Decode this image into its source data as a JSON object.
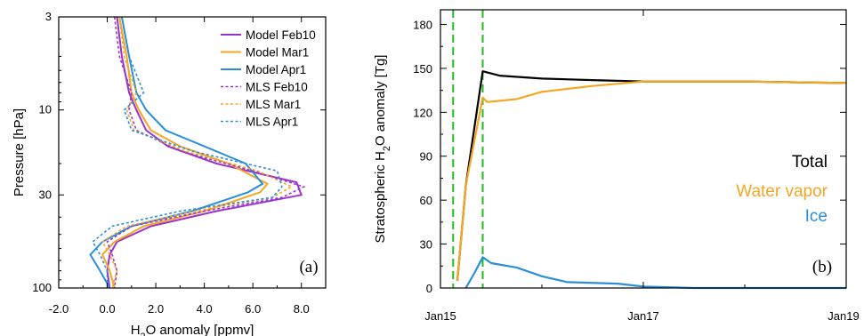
{
  "chart_data": [
    {
      "type": "line",
      "panel_label": "(a)",
      "xlabel": "H2O anomaly [ppmv]",
      "ylabel": "Pressure [hPa]",
      "xlim": [
        -2.0,
        9.0
      ],
      "x_ticks": [
        "-2.0",
        "0.0",
        "2.0",
        "4.0",
        "6.0",
        "8.0"
      ],
      "y_scale": "log",
      "ylim": [
        100,
        3
      ],
      "y_ticks": [
        "3",
        "10",
        "30",
        "100"
      ],
      "legend_position": "top-right",
      "series": [
        {
          "name": "Model Feb10",
          "color": "#9933cc",
          "dash": "solid",
          "points": [
            [
              0.4,
              3
            ],
            [
              0.6,
              5
            ],
            [
              0.9,
              8
            ],
            [
              1.2,
              10
            ],
            [
              1.6,
              13
            ],
            [
              2.5,
              16
            ],
            [
              4.5,
              20
            ],
            [
              7.8,
              25.5
            ],
            [
              8.0,
              30
            ],
            [
              4.5,
              37
            ],
            [
              1.8,
              45
            ],
            [
              0.4,
              55
            ],
            [
              0.1,
              65
            ],
            [
              0.0,
              80
            ],
            [
              0.1,
              100
            ]
          ]
        },
        {
          "name": "Model Mar1",
          "color": "#f5a623",
          "dash": "solid",
          "points": [
            [
              0.5,
              3
            ],
            [
              0.8,
              5
            ],
            [
              1.0,
              8
            ],
            [
              1.3,
              10
            ],
            [
              1.8,
              13
            ],
            [
              3.0,
              16
            ],
            [
              5.0,
              20
            ],
            [
              6.6,
              26
            ],
            [
              6.3,
              29
            ],
            [
              4.0,
              37
            ],
            [
              1.5,
              45
            ],
            [
              0.3,
              55
            ],
            [
              -0.2,
              65
            ],
            [
              0.1,
              80
            ],
            [
              0.3,
              100
            ]
          ]
        },
        {
          "name": "Model Apr1",
          "color": "#2a8fd8",
          "dash": "solid",
          "points": [
            [
              0.6,
              3
            ],
            [
              0.9,
              5
            ],
            [
              1.2,
              8
            ],
            [
              1.6,
              10
            ],
            [
              2.4,
              13
            ],
            [
              4.0,
              16
            ],
            [
              5.7,
              20
            ],
            [
              6.4,
              26
            ],
            [
              5.8,
              29
            ],
            [
              3.5,
              37
            ],
            [
              1.0,
              45
            ],
            [
              -0.2,
              55
            ],
            [
              -0.7,
              65
            ],
            [
              -0.3,
              80
            ],
            [
              0.1,
              100
            ]
          ]
        },
        {
          "name": "MLS Feb10",
          "color": "#9933cc",
          "dash": "dotted",
          "points": [
            [
              0.3,
              3
            ],
            [
              0.5,
              5
            ],
            [
              1.0,
              8
            ],
            [
              0.9,
              10
            ],
            [
              1.2,
              13
            ],
            [
              3.0,
              17
            ],
            [
              6.0,
              22
            ],
            [
              8.1,
              27
            ],
            [
              7.2,
              31
            ],
            [
              4.0,
              37
            ],
            [
              1.0,
              45
            ],
            [
              0.0,
              55
            ],
            [
              0.2,
              65
            ],
            [
              0.4,
              80
            ],
            [
              0.3,
              100
            ]
          ]
        },
        {
          "name": "MLS Mar1",
          "color": "#f5a623",
          "dash": "dotted",
          "points": [
            [
              0.5,
              3
            ],
            [
              0.7,
              5
            ],
            [
              1.2,
              8
            ],
            [
              0.8,
              10
            ],
            [
              1.1,
              13
            ],
            [
              3.2,
              17
            ],
            [
              6.2,
              22
            ],
            [
              7.6,
              27
            ],
            [
              6.8,
              31
            ],
            [
              3.6,
              37
            ],
            [
              0.8,
              45
            ],
            [
              -0.2,
              55
            ],
            [
              0.1,
              65
            ],
            [
              0.4,
              80
            ],
            [
              0.2,
              100
            ]
          ]
        },
        {
          "name": "MLS Apr1",
          "color": "#2a8fd8",
          "dash": "dotted",
          "points": [
            [
              0.6,
              3
            ],
            [
              0.9,
              5
            ],
            [
              1.5,
              8
            ],
            [
              0.7,
              10
            ],
            [
              1.0,
              13
            ],
            [
              3.5,
              17
            ],
            [
              7.0,
              22
            ],
            [
              7.2,
              27
            ],
            [
              6.8,
              31
            ],
            [
              3.0,
              37
            ],
            [
              0.2,
              45
            ],
            [
              -0.6,
              55
            ],
            [
              -0.3,
              65
            ],
            [
              0.0,
              80
            ],
            [
              0.0,
              100
            ]
          ]
        }
      ]
    },
    {
      "type": "line",
      "panel_label": "(b)",
      "ylabel": "Stratospheric H2O anomaly [Tg]",
      "xlabel": "",
      "x_ticks": [
        "Jan15",
        "Jan17",
        "Jan19"
      ],
      "xlim": [
        "2022-01-15",
        "2022-01-19"
      ],
      "ylim": [
        0,
        190
      ],
      "y_ticks": [
        "0",
        "30",
        "60",
        "90",
        "120",
        "150",
        "180"
      ],
      "event_markers": [
        "2022-01-15 03:00",
        "2022-01-15 10:00"
      ],
      "marker_color": "#22bb22",
      "series": [
        {
          "name": "Total",
          "color": "#000000",
          "points": [
            [
              "2022-01-15 04:00",
              5
            ],
            [
              "2022-01-15 06:00",
              70
            ],
            [
              "2022-01-15 10:00",
              148
            ],
            [
              "2022-01-15 14:00",
              145
            ],
            [
              "2022-01-16 00:00",
              143
            ],
            [
              "2022-01-16 12:00",
              142
            ],
            [
              "2022-01-17 00:00",
              141
            ],
            [
              "2022-01-18 00:00",
              141
            ],
            [
              "2022-01-19 00:00",
              140
            ]
          ]
        },
        {
          "name": "Water vapor",
          "color": "#f5a623",
          "points": [
            [
              "2022-01-15 04:00",
              5
            ],
            [
              "2022-01-15 06:00",
              70
            ],
            [
              "2022-01-15 10:00",
              130
            ],
            [
              "2022-01-15 11:00",
              127
            ],
            [
              "2022-01-15 18:00",
              129
            ],
            [
              "2022-01-16 00:00",
              134
            ],
            [
              "2022-01-16 12:00",
              138
            ],
            [
              "2022-01-17 00:00",
              141
            ],
            [
              "2022-01-18 00:00",
              141
            ],
            [
              "2022-01-19 00:00",
              140
            ]
          ]
        },
        {
          "name": "Ice",
          "color": "#2a8fd8",
          "points": [
            [
              "2022-01-15 06:00",
              0
            ],
            [
              "2022-01-15 08:00",
              10
            ],
            [
              "2022-01-15 10:00",
              21
            ],
            [
              "2022-01-15 12:00",
              17
            ],
            [
              "2022-01-15 18:00",
              14
            ],
            [
              "2022-01-16 00:00",
              8
            ],
            [
              "2022-01-16 06:00",
              4
            ],
            [
              "2022-01-16 18:00",
              3
            ],
            [
              "2022-01-17 00:00",
              1
            ],
            [
              "2022-01-17 12:00",
              0
            ],
            [
              "2022-01-19 00:00",
              0
            ]
          ]
        }
      ]
    }
  ]
}
